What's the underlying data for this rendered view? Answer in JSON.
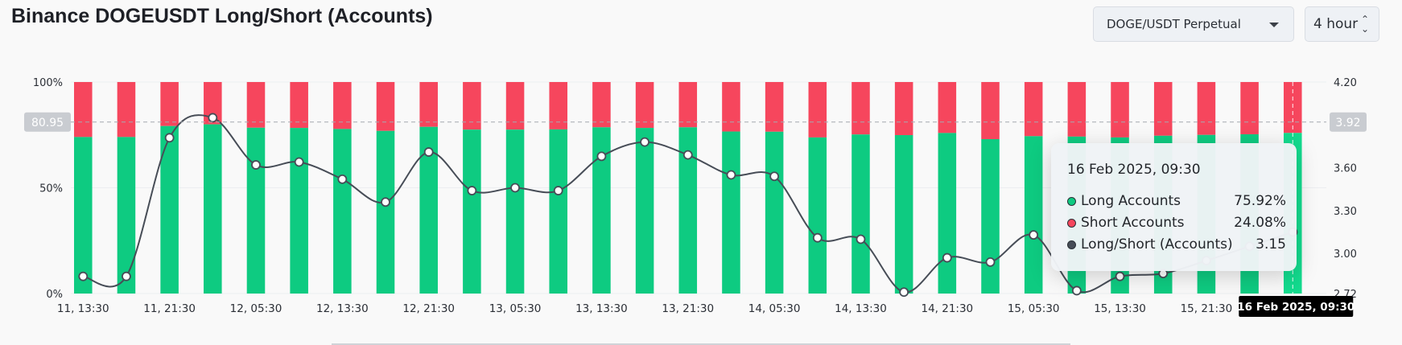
{
  "header": {
    "title": "Binance DOGEUSDT Long/Short (Accounts)",
    "pair_select": "DOGE/USDT Perpetual",
    "interval_select": "4 hour"
  },
  "colors": {
    "long": "#0ecb81",
    "short": "#f6465d",
    "ratio_line": "#474d57",
    "highlight_bar": "#13db8e"
  },
  "chart_data": {
    "type": "bar",
    "stacked_percent": true,
    "x_tick_labels": [
      "11, 13:30",
      "11, 21:30",
      "12, 05:30",
      "12, 13:30",
      "12, 21:30",
      "13, 05:30",
      "13, 13:30",
      "13, 21:30",
      "14, 05:30",
      "14, 13:30",
      "14, 21:30",
      "15, 05:30",
      "15, 13:30",
      "15, 21:30",
      "16"
    ],
    "left_axis": {
      "ticks": [
        "100%",
        "50%",
        "0%"
      ],
      "ylim": [
        0,
        100
      ]
    },
    "right_axis": {
      "ticks": [
        "4.20",
        "3.90",
        "3.60",
        "3.30",
        "3.00",
        "2.72"
      ],
      "ylim": [
        2.72,
        4.2
      ]
    },
    "series": [
      {
        "name": "Long Accounts",
        "values": [
          74.0,
          74.0,
          79.2,
          80.0,
          78.4,
          78.3,
          77.8,
          76.9,
          78.8,
          77.5,
          77.5,
          77.6,
          78.6,
          78.3,
          78.6,
          76.6,
          76.5,
          73.8,
          75.2,
          74.9,
          75.9,
          73.0,
          74.4,
          74.2,
          73.8,
          74.6,
          75.0,
          75.3,
          75.92
        ]
      },
      {
        "name": "Short Accounts",
        "values": [
          26.0,
          26.0,
          20.8,
          20.0,
          21.6,
          21.7,
          22.2,
          23.1,
          21.2,
          22.5,
          22.5,
          22.4,
          21.4,
          21.7,
          21.4,
          23.4,
          23.5,
          26.2,
          24.8,
          25.1,
          24.1,
          27.0,
          25.6,
          25.8,
          26.2,
          25.4,
          25.0,
          24.7,
          24.08
        ]
      },
      {
        "name": "Long/Short (Accounts)",
        "axis": "right",
        "values": [
          2.84,
          2.84,
          3.81,
          3.95,
          3.62,
          3.64,
          3.52,
          3.36,
          3.71,
          3.44,
          3.46,
          3.44,
          3.68,
          3.78,
          3.69,
          3.55,
          3.54,
          3.11,
          3.1,
          2.73,
          2.97,
          2.94,
          3.13,
          2.74,
          2.84,
          2.86,
          2.95,
          3.05,
          3.15
        ]
      }
    ],
    "crosshair": {
      "index": 28,
      "left_value": "80.95",
      "right_value": "3.92",
      "time_label": "16 Feb 2025, 09:30"
    }
  },
  "tooltip": {
    "time": "16 Feb 2025, 09:30",
    "rows": [
      {
        "label": "Long Accounts",
        "value": "75.92%"
      },
      {
        "label": "Short Accounts",
        "value": "24.08%"
      },
      {
        "label": "Long/Short (Accounts)",
        "value": "3.15"
      }
    ]
  }
}
